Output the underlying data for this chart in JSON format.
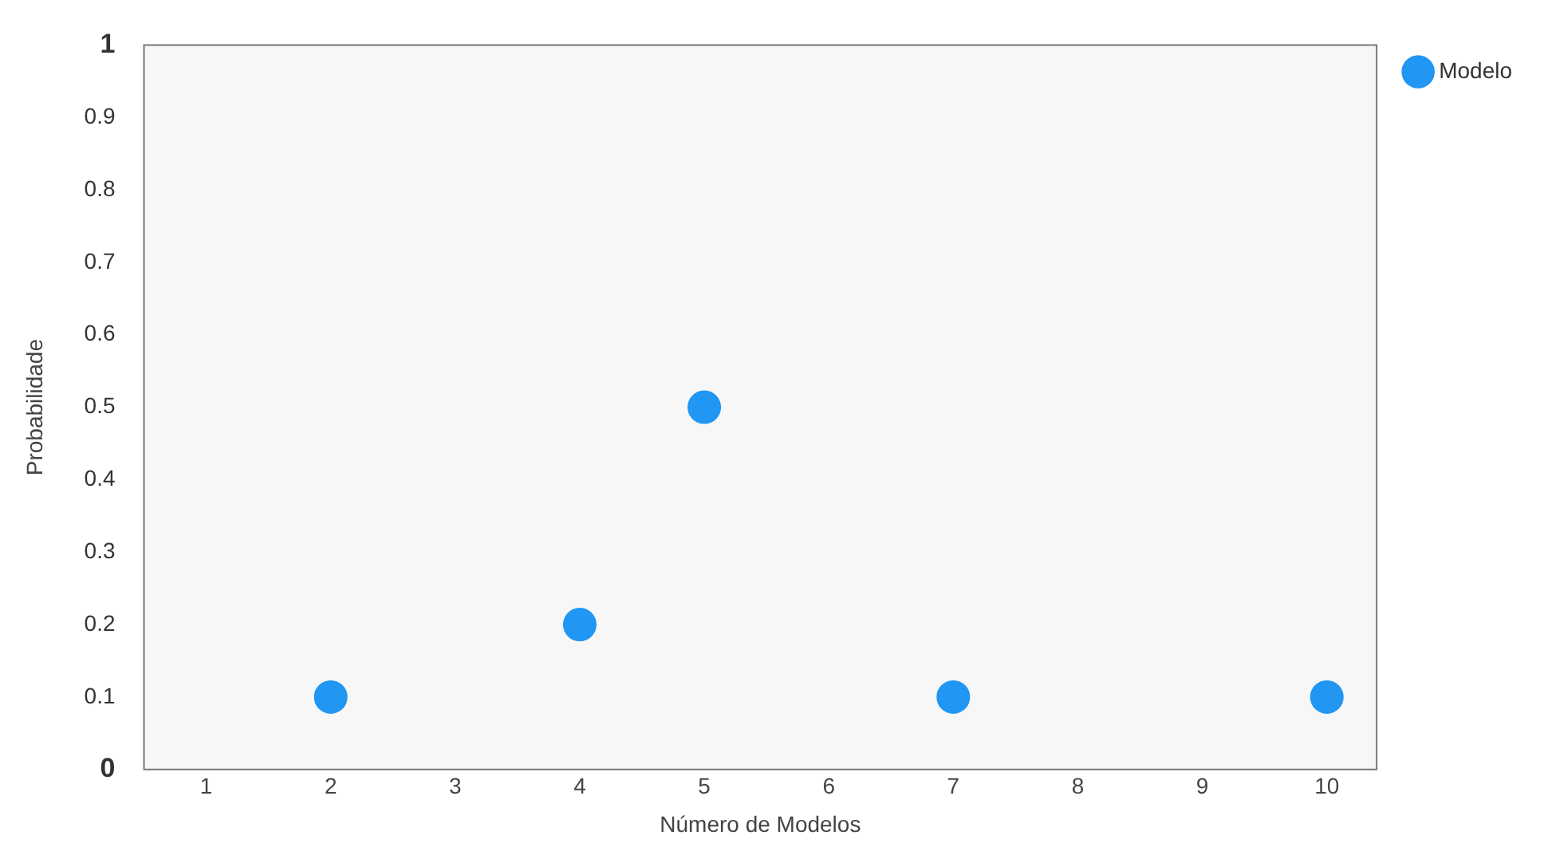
{
  "chart_data": {
    "type": "scatter",
    "xlabel": "Número de Modelos",
    "ylabel": "Probabilidade",
    "x": [
      2,
      4,
      5,
      7,
      10
    ],
    "series": [
      {
        "name": "Modelo",
        "color": "#2196f3",
        "values": [
          0.1,
          0.2,
          0.5,
          0.1,
          0.1
        ]
      }
    ],
    "xlim": [
      0.5,
      10.4
    ],
    "xticks": [
      1,
      2,
      3,
      4,
      5,
      6,
      7,
      8,
      9,
      10
    ],
    "ylim": [
      0,
      1
    ],
    "yticks": [
      0,
      0.1,
      0.2,
      0.3,
      0.4,
      0.5,
      0.6,
      0.7,
      0.8,
      0.9,
      1
    ],
    "grid": false,
    "legend": "right",
    "marker": "circle"
  }
}
